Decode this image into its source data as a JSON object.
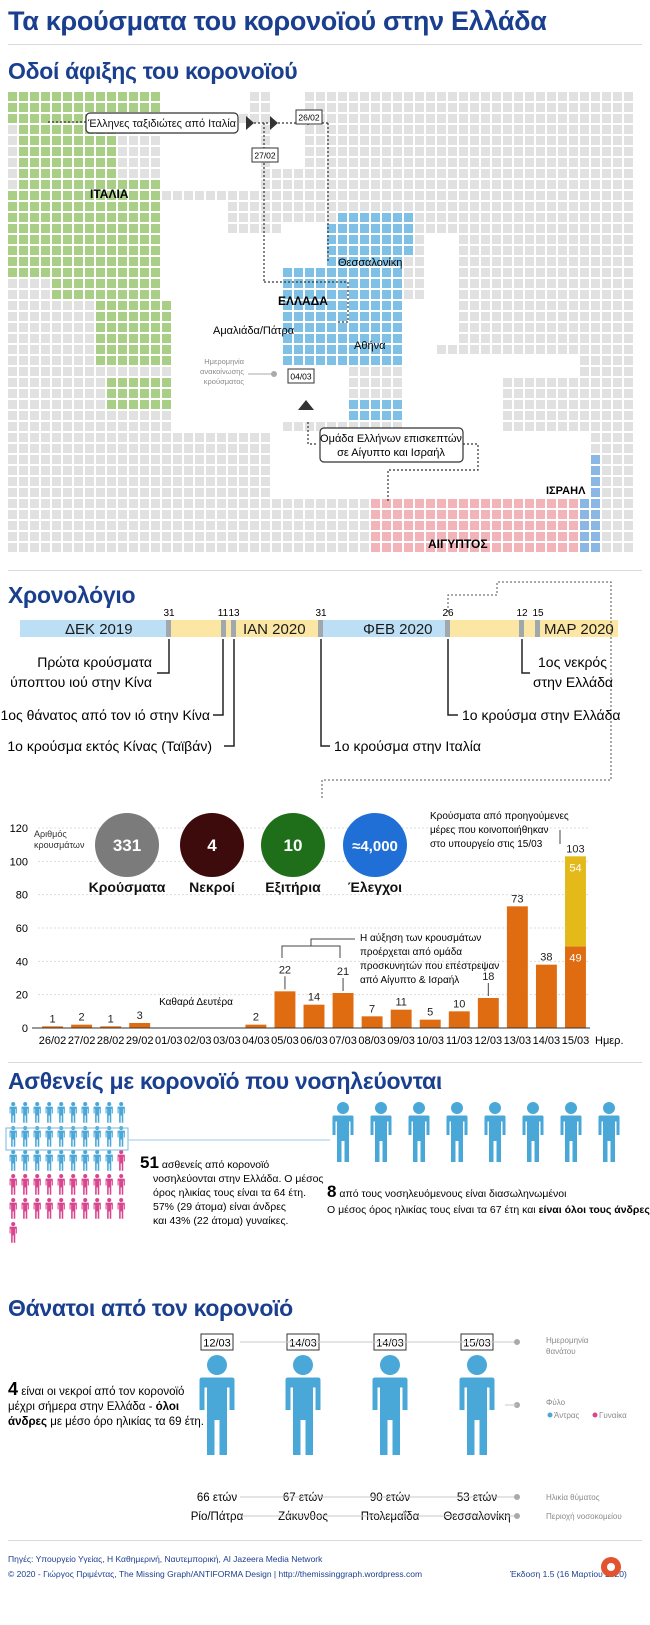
{
  "header": {
    "title": "Τα κρούσματα του κορονοϊού στην Ελλάδα"
  },
  "map": {
    "title": "Οδοί άφιξης του κορονοϊού",
    "countries": {
      "italy": "ΙΤΑΛΙΑ",
      "greece": "ΕΛΛΑΔΑ",
      "israel": "ΙΣΡΑΗΛ",
      "egypt": "ΑΙΓΥΠΤΟΣ"
    },
    "cities": {
      "thessaloniki": "Θεσσαλονίκη",
      "amaliada": "Αμαλιάδα/Πάτρα",
      "athens": "Αθήνα"
    },
    "callouts": {
      "italy_travellers": "Έλληνες ταξιδιώτες από Ιταλία",
      "egypt_israel_line1": "Ομάδα Ελλήνων επισκεπτών",
      "egypt_israel_line2": "σε Αίγυπτο και Ισραήλ"
    },
    "dates": {
      "d1": "26/02",
      "d2": "27/02",
      "d3": "04/03"
    },
    "legend": {
      "line1": "Ημερομηνία",
      "line2": "ανακοίνωσης",
      "line3": "κρούσματος"
    },
    "colors": {
      "italy": "#a9cf86",
      "greece": "#7ec0e6",
      "israel": "#8ab7e3",
      "egypt": "#f2b4b8",
      "land": "#e1e1e1"
    }
  },
  "timeline": {
    "title": "Χρονολόγιο",
    "months": [
      "ΔΕΚ 2019",
      "ΙΑΝ 2020",
      "ΦΕΒ 2020",
      "ΜΑΡ 2020"
    ],
    "ticks": [
      "31",
      "11",
      "13",
      "31",
      "26",
      "12",
      "15"
    ],
    "events": {
      "e1a": "Πρώτα κρούσματα",
      "e1b": "ύποπτου ιού στην Κίνα",
      "e2": "1ος θάνατος από τον ιό στην Κίνα",
      "e3": "1ο κρούσμα εκτός Κίνας (Ταϊβάν)",
      "e4": "1ο κρούσμα στην Ιταλία",
      "e5": "1ο κρούσμα στην Ελλάδα",
      "e6a": "1ος νεκρός",
      "e6b": "στην Ελλάδα"
    }
  },
  "stats": {
    "label_line1": "Αριθμός",
    "label_line2": "κρουσμάτων",
    "items": [
      {
        "value": "331",
        "label": "Κρούσματα",
        "color": "#7b7b7b"
      },
      {
        "value": "4",
        "label": "Νεκροί",
        "color": "#3d0b0b"
      },
      {
        "value": "10",
        "label": "Εξιτήρια",
        "color": "#1f6f1a"
      },
      {
        "value": "≈4,000",
        "label": "Έλεγχοι",
        "color": "#1f6fd6"
      }
    ]
  },
  "chart_data": {
    "type": "bar",
    "categories": [
      "26/02",
      "27/02",
      "28/02",
      "29/02",
      "01/03",
      "02/03",
      "03/03",
      "04/03",
      "05/03",
      "06/03",
      "07/03",
      "08/03",
      "09/03",
      "10/03",
      "11/03",
      "12/03",
      "13/03",
      "14/03",
      "15/03"
    ],
    "series": [
      {
        "values": [
          1,
          2,
          1,
          3,
          0,
          0,
          0,
          2,
          22,
          14,
          21,
          7,
          11,
          5,
          10,
          18,
          73,
          38,
          49
        ]
      },
      {
        "values": [
          0,
          0,
          0,
          0,
          0,
          0,
          0,
          0,
          0,
          0,
          0,
          0,
          0,
          0,
          0,
          0,
          0,
          0,
          54
        ]
      }
    ],
    "labels": [
      "1",
      "2",
      "1",
      "3",
      "",
      "",
      "",
      "2",
      "22",
      "14",
      "21",
      "7",
      "11",
      "5",
      "10",
      "18",
      "73",
      "38",
      "103"
    ],
    "stack_labels": {
      "bottom": "49",
      "top": "54"
    },
    "x_suffix": "Ημερ.",
    "yticks": [
      "0",
      "20",
      "40",
      "60",
      "80",
      "100",
      "120"
    ],
    "ylim": [
      0,
      120
    ],
    "colors": {
      "bar": "#e06c12",
      "bar_small": "#e06c12",
      "previous": "#e4b91a"
    },
    "annotations": {
      "monday": "Καθαρά Δευτέρα",
      "pilgrims_line1": "Η αύξηση των κρουσμάτων",
      "pilgrims_line2": "προέρχεται από ομάδα",
      "pilgrims_line3": "προσκυνητών που επέστρεψαν",
      "pilgrims_line4": "από Αίγυπτο & Ισραήλ",
      "prev_line1": "Κρούσματα από προηγούμενες",
      "prev_line2": "μέρες που κοινοποιήθηκαν",
      "prev_line3": "στο υπουργείο στις 15/03"
    }
  },
  "hospital": {
    "title": "Ασθενείς με κορονοϊό που νοσηλεύονται",
    "count": "51",
    "text1": " ασθενείς από κορονοϊό",
    "text2": "νοσηλεύονται στην Ελλάδα. Ο μέσος",
    "text3": "όρος ηλικίας τους είναι τα 64 έτη.",
    "text4": "57% (29 άτομα) είναι άνδρες",
    "text5": "και 43% (22 άτομα) γυναίκες.",
    "intub_count": "8",
    "intub_text": " από τους νοσηλευόμενους είναι διασωληνωμένοι",
    "intub_text2a": "Ο μέσος όρος ηλικίας τους είναι τα 67 έτη και ",
    "intub_text2b": "είναι όλοι τους άνδρες",
    "colors": {
      "male": "#4aa8d8",
      "female": "#d9458f"
    }
  },
  "deaths": {
    "title": "Θάνατοι από τον κορονοϊό",
    "count": "4",
    "text1": " είναι οι νεκροί από τον κορονοϊό",
    "text2": "μέχρι σήμερα στην Ελλάδα - ",
    "text2b": "όλοι",
    "text3a": "άνδρες",
    "text3b": " με μέσο όρο ηλικίας τα 69 έτη.",
    "people": [
      {
        "date": "12/03",
        "age": "66 ετών",
        "place": "Ρίο/Πάτρα"
      },
      {
        "date": "14/03",
        "age": "67 ετών",
        "place": "Ζάκυνθος"
      },
      {
        "date": "14/03",
        "age": "90 ετών",
        "place": "Πτολεμαΐδα"
      },
      {
        "date": "15/03",
        "age": "53 ετών",
        "place": "Θεσσαλονίκη"
      }
    ],
    "legend": {
      "date1": "Ημερομηνία",
      "date2": "θανάτου",
      "sex": "Φύλο",
      "male": "Άντρας",
      "female": "Γυναίκα",
      "age": "Ηλικία θύματος",
      "region": "Περιοχή νοσοκομείου"
    }
  },
  "footer": {
    "sources": "Πηγές: Υπουργείο Υγείας, Η Καθημερινή, Ναυτεμπορική, Al Jazeera Media Network",
    "credits": "© 2020 - Γιώργος Πριμέντας, The Missing Graph/ANTIFORMA Design  |  http://themissinggraph.wordpress.com",
    "version": "Έκδοση 1.5 (16 Μαρτίου 2020)"
  }
}
